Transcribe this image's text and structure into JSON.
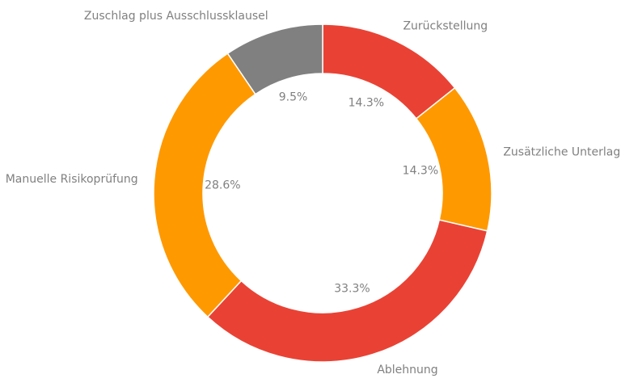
{
  "chart_data": {
    "type": "pie",
    "variant": "donut",
    "title": "",
    "slices": [
      {
        "label": "Zurückstellung",
        "value": 14.3,
        "pct_label": "14.3%",
        "color": "#e94234"
      },
      {
        "label": "Zusätzliche Unterlagen",
        "value": 14.3,
        "pct_label": "14.3%",
        "color": "#ff9900"
      },
      {
        "label": "Ablehnung",
        "value": 33.3,
        "pct_label": "33.3%",
        "color": "#e94234"
      },
      {
        "label": "Manuelle Risikoprüfung",
        "value": 28.6,
        "pct_label": "28.6%",
        "color": "#ff9900"
      },
      {
        "label": "Zuschlag plus Ausschlussklausel",
        "value": 9.5,
        "pct_label": "9.5%",
        "color": "#808080"
      }
    ],
    "start": "top",
    "direction": "clockwise",
    "legend": "none"
  }
}
